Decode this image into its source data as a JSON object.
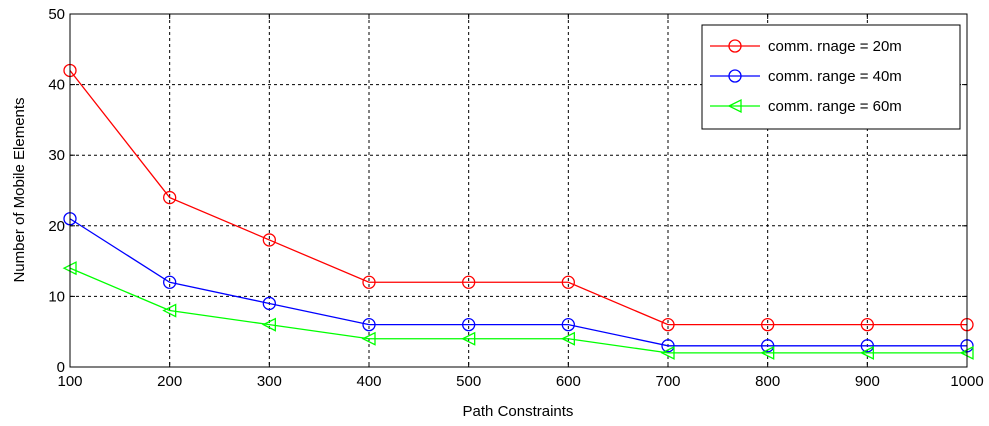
{
  "chart_data": {
    "type": "line",
    "title": "",
    "xlabel": "Path Constraints",
    "ylabel": "Number of Mobile Elements",
    "xlim": [
      100,
      1000
    ],
    "ylim": [
      0,
      50
    ],
    "x": [
      100,
      200,
      300,
      400,
      500,
      600,
      700,
      800,
      900,
      1000
    ],
    "xticks": [
      "100",
      "200",
      "300",
      "400",
      "500",
      "600",
      "700",
      "800",
      "900",
      "1000"
    ],
    "yticks": [
      "0",
      "10",
      "20",
      "30",
      "40",
      "50"
    ],
    "grid": true,
    "legend_position": "top-right",
    "series": [
      {
        "name": "comm. rnage = 20m",
        "color": "#ff0000",
        "marker": "circle",
        "values": [
          42,
          24,
          18,
          12,
          12,
          12,
          6,
          6,
          6,
          6
        ]
      },
      {
        "name": "comm. range = 40m",
        "color": "#0000ff",
        "marker": "circle",
        "values": [
          21,
          12,
          9,
          6,
          6,
          6,
          3,
          3,
          3,
          3
        ]
      },
      {
        "name": "comm. range = 60m",
        "color": "#00ff00",
        "marker": "triangle-left",
        "values": [
          14,
          8,
          6,
          4,
          4,
          4,
          2,
          2,
          2,
          2
        ]
      }
    ]
  }
}
